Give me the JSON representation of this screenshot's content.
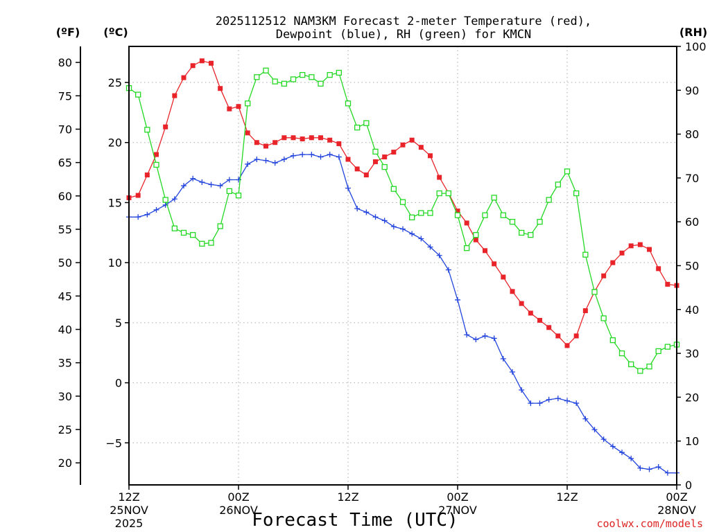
{
  "chart_data": {
    "type": "line",
    "title_line1": "2025112512 NAM3KM Forecast 2-meter Temperature (red),",
    "title_line2": "Dewpoint (blue), RH (green) for KMCN",
    "xlabel": "Forecast Time (UTC)",
    "credit": "coolwx.com/models",
    "unit_f": "(ºF)",
    "unit_c": "(ºC)",
    "unit_rh": "(RH)",
    "x_range_hours": [
      0,
      60
    ],
    "c_range": [
      -8.5,
      28
    ],
    "rh_range": [
      0,
      100
    ],
    "x_ticks": [
      {
        "h": 0,
        "l1": "12Z",
        "l2": "25NOV",
        "l3": "2025"
      },
      {
        "h": 12,
        "l1": "00Z",
        "l2": "26NOV",
        "l3": ""
      },
      {
        "h": 24,
        "l1": "12Z",
        "l2": "",
        "l3": ""
      },
      {
        "h": 36,
        "l1": "00Z",
        "l2": "27NOV",
        "l3": ""
      },
      {
        "h": 48,
        "l1": "12Z",
        "l2": "",
        "l3": ""
      },
      {
        "h": 60,
        "l1": "00Z",
        "l2": "28NOV",
        "l3": ""
      }
    ],
    "f_ticks": [
      20,
      25,
      30,
      35,
      40,
      45,
      50,
      55,
      60,
      65,
      70,
      75,
      80
    ],
    "c_ticks": [
      -5,
      0,
      5,
      10,
      15,
      20,
      25
    ],
    "rh_ticks": [
      0,
      10,
      20,
      30,
      40,
      50,
      60,
      70,
      80,
      90,
      100
    ],
    "hours": [
      0,
      1,
      2,
      3,
      4,
      5,
      6,
      7,
      8,
      9,
      10,
      11,
      12,
      13,
      14,
      15,
      16,
      17,
      18,
      19,
      20,
      21,
      22,
      23,
      24,
      25,
      26,
      27,
      28,
      29,
      30,
      31,
      32,
      33,
      34,
      35,
      36,
      37,
      38,
      39,
      40,
      41,
      42,
      43,
      44,
      45,
      46,
      47,
      48,
      49,
      50,
      51,
      52,
      53,
      54,
      55,
      56,
      57,
      58,
      59,
      60
    ],
    "series": [
      {
        "name": "2-meter Temperature (C)",
        "color": "#e8242a",
        "marker": "filled-square",
        "values": [
          15.4,
          15.6,
          17.3,
          19.0,
          21.3,
          23.9,
          25.4,
          26.4,
          26.8,
          26.6,
          24.5,
          22.8,
          23.0,
          20.8,
          20.0,
          19.7,
          20.0,
          20.4,
          20.4,
          20.3,
          20.4,
          20.4,
          20.2,
          19.9,
          18.6,
          17.8,
          17.3,
          18.4,
          18.8,
          19.2,
          19.8,
          20.2,
          19.6,
          18.9,
          17.1,
          15.8,
          14.3,
          13.3,
          11.9,
          11.0,
          9.9,
          8.8,
          7.6,
          6.6,
          5.8,
          5.2,
          4.6,
          3.9,
          3.1,
          3.9,
          6.0,
          7.6,
          8.9,
          10.0,
          10.8,
          11.4,
          11.5,
          11.1,
          9.5,
          8.2,
          8.1
        ]
      },
      {
        "name": "Dewpoint (C)",
        "color": "#2244dd",
        "marker": "plus",
        "values": [
          13.8,
          13.8,
          14.0,
          14.4,
          14.8,
          15.3,
          16.4,
          17.0,
          16.7,
          16.5,
          16.4,
          16.9,
          16.9,
          18.2,
          18.6,
          18.5,
          18.3,
          18.6,
          18.9,
          19.0,
          19.0,
          18.8,
          19.0,
          18.8,
          16.2,
          14.5,
          14.2,
          13.8,
          13.5,
          13.0,
          12.8,
          12.4,
          12.0,
          11.3,
          10.6,
          9.4,
          6.9,
          4.0,
          3.6,
          3.9,
          3.7,
          2.0,
          0.9,
          -0.6,
          -1.7,
          -1.7,
          -1.4,
          -1.3,
          -1.5,
          -1.7,
          -3.0,
          -3.9,
          -4.7,
          -5.3,
          -5.8,
          -6.3,
          -7.1,
          -7.2,
          -7.0,
          -7.5,
          -7.5
        ]
      },
      {
        "name": "RH (%)",
        "color": "#22d822",
        "marker": "open-square",
        "values": [
          90.5,
          89.0,
          81.0,
          73.0,
          65.0,
          58.5,
          57.5,
          57.0,
          55.0,
          55.2,
          59.0,
          67.0,
          66.0,
          87.0,
          93.0,
          94.5,
          92.0,
          91.5,
          92.5,
          93.5,
          93.0,
          91.5,
          93.5,
          94.0,
          87.0,
          81.5,
          82.5,
          76.0,
          72.5,
          67.5,
          64.5,
          61.0,
          62.0,
          62.0,
          66.5,
          66.5,
          61.5,
          54.0,
          57.0,
          61.5,
          65.5,
          61.5,
          60.0,
          57.5,
          57.0,
          60.0,
          65.0,
          68.5,
          71.5,
          66.5,
          52.5,
          44.0,
          38.0,
          33.0,
          30.0,
          27.5,
          26.0,
          27.0,
          30.5,
          31.5,
          32.0
        ]
      }
    ]
  }
}
